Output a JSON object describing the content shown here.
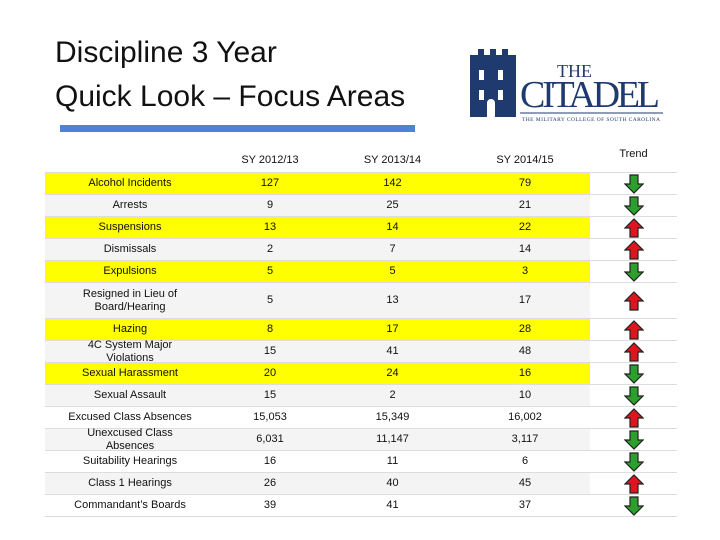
{
  "header": {
    "title_lines": [
      "Discipline 3 Year",
      "Quick Look – Focus Areas"
    ],
    "logo": {
      "name_small": "THE",
      "name": "CITADEL",
      "tagline": "THE MILITARY COLLEGE OF SOUTH CAROLINA"
    }
  },
  "table": {
    "columns": [
      "SY 2012/13",
      "SY 2013/14",
      "SY 2014/15",
      "Trend"
    ],
    "rows": [
      {
        "label": "Alcohol Incidents",
        "values": [
          "127",
          "142",
          "79"
        ],
        "trend": "down",
        "highlight": true
      },
      {
        "label": "Arrests",
        "values": [
          "9",
          "25",
          "21"
        ],
        "trend": "down",
        "highlight": false
      },
      {
        "label": "Suspensions",
        "values": [
          "13",
          "14",
          "22"
        ],
        "trend": "up",
        "highlight": true
      },
      {
        "label": "Dismissals",
        "values": [
          "2",
          "7",
          "14"
        ],
        "trend": "up",
        "highlight": false
      },
      {
        "label": "Expulsions",
        "values": [
          "5",
          "5",
          "3"
        ],
        "trend": "down",
        "highlight": true
      },
      {
        "label": "Resigned in Lieu of Board/Hearing",
        "values": [
          "5",
          "13",
          "17"
        ],
        "trend": "up",
        "highlight": false
      },
      {
        "label": "Hazing",
        "values": [
          "8",
          "17",
          "28"
        ],
        "trend": "up",
        "highlight": true
      },
      {
        "label": "4C System Major Violations",
        "values": [
          "15",
          "41",
          "48"
        ],
        "trend": "up",
        "highlight": false
      },
      {
        "label": "Sexual Harassment",
        "values": [
          "20",
          "24",
          "16"
        ],
        "trend": "down",
        "highlight": true
      },
      {
        "label": "Sexual Assault",
        "values": [
          "15",
          "2",
          "10"
        ],
        "trend": "down",
        "highlight": false
      },
      {
        "label": "Excused Class Absences",
        "values": [
          "15,053",
          "15,349",
          "16,002"
        ],
        "trend": "up",
        "highlight": false
      },
      {
        "label": "Unexcused Class Absences",
        "values": [
          "6,031",
          "11,147",
          "3,117"
        ],
        "trend": "down",
        "highlight": false
      },
      {
        "label": "Suitability Hearings",
        "values": [
          "16",
          "11",
          "6"
        ],
        "trend": "down",
        "highlight": false
      },
      {
        "label": "Class 1 Hearings",
        "values": [
          "26",
          "40",
          "45"
        ],
        "trend": "up",
        "highlight": false
      },
      {
        "label": "Commandant’s Boards",
        "values": [
          "39",
          "41",
          "37"
        ],
        "trend": "down",
        "highlight": false
      }
    ]
  }
}
